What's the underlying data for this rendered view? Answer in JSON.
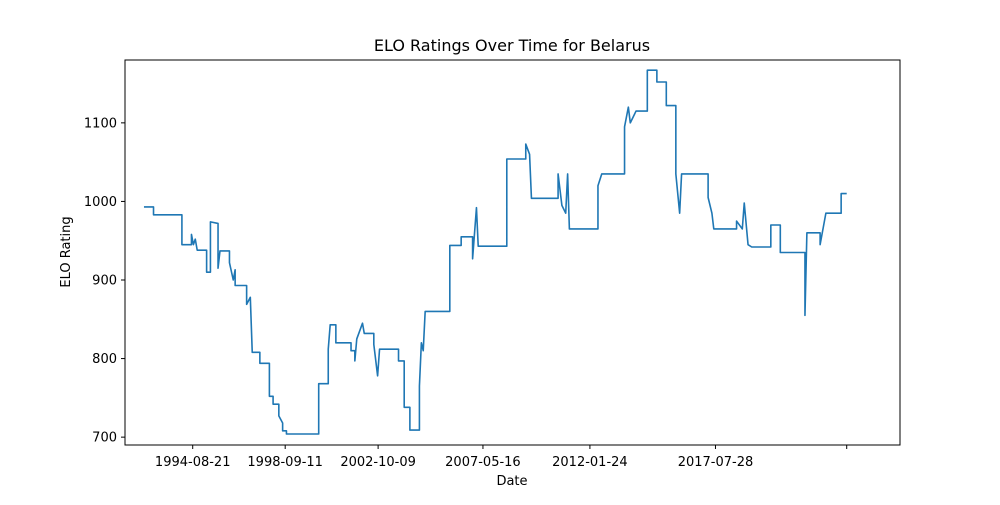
{
  "chart_data": {
    "type": "line",
    "title": "ELO Ratings Over Time for Belarus",
    "xlabel": "Date",
    "ylabel": "ELO Rating",
    "xlim": [
      "1991-09-01",
      "2025-09-01"
    ],
    "ylim": [
      690,
      1180
    ],
    "x_ticks": [
      "1994-08-21",
      "1998-09-11",
      "2002-10-09",
      "2007-05-16",
      "2012-01-24",
      "2017-07-28",
      "2023-05-01"
    ],
    "x_tick_labels": [
      "1994-08-21",
      "1998-09-11",
      "2002-10-09",
      "2007-05-16",
      "2012-01-24",
      "2017-07-28",
      ""
    ],
    "y_ticks": [
      700,
      800,
      900,
      1000,
      1100
    ],
    "grid": false,
    "series": [
      {
        "color": "#1f77b4",
        "points": [
          [
            "1992-07-01",
            993
          ],
          [
            "1992-12-01",
            993
          ],
          [
            "1992-12-01",
            983
          ],
          [
            "1994-03-01",
            983
          ],
          [
            "1994-03-01",
            945
          ],
          [
            "1994-08-01",
            945
          ],
          [
            "1994-08-01",
            958
          ],
          [
            "1994-09-01",
            945
          ],
          [
            "1994-10-01",
            952
          ],
          [
            "1994-11-01",
            938
          ],
          [
            "1995-04-01",
            938
          ],
          [
            "1995-04-01",
            910
          ],
          [
            "1995-06-01",
            910
          ],
          [
            "1995-06-01",
            974
          ],
          [
            "1995-10-01",
            972
          ],
          [
            "1995-10-01",
            915
          ],
          [
            "1995-11-01",
            937
          ],
          [
            "1996-04-01",
            937
          ],
          [
            "1996-04-01",
            922
          ],
          [
            "1996-06-01",
            900
          ],
          [
            "1996-07-01",
            913
          ],
          [
            "1996-07-01",
            893
          ],
          [
            "1997-01-01",
            893
          ],
          [
            "1997-01-01",
            869
          ],
          [
            "1997-03-01",
            878
          ],
          [
            "1997-04-01",
            808
          ],
          [
            "1997-08-01",
            808
          ],
          [
            "1997-08-01",
            794
          ],
          [
            "1998-01-01",
            794
          ],
          [
            "1998-01-01",
            752
          ],
          [
            "1998-03-01",
            752
          ],
          [
            "1998-03-01",
            742
          ],
          [
            "1998-06-01",
            742
          ],
          [
            "1998-06-01",
            727
          ],
          [
            "1998-08-01",
            718
          ],
          [
            "1998-08-01",
            708
          ],
          [
            "1998-10-01",
            708
          ],
          [
            "1998-10-01",
            704
          ],
          [
            "2000-03-01",
            704
          ],
          [
            "2000-03-01",
            768
          ],
          [
            "2000-08-01",
            768
          ],
          [
            "2000-08-01",
            812
          ],
          [
            "2000-09-01",
            843
          ],
          [
            "2000-12-01",
            843
          ],
          [
            "2000-12-01",
            820
          ],
          [
            "2001-08-01",
            820
          ],
          [
            "2001-08-01",
            810
          ],
          [
            "2001-10-01",
            810
          ],
          [
            "2001-10-01",
            797
          ],
          [
            "2001-11-01",
            825
          ],
          [
            "2002-02-01",
            845
          ],
          [
            "2002-03-01",
            832
          ],
          [
            "2002-08-01",
            832
          ],
          [
            "2002-08-01",
            818
          ],
          [
            "2002-10-01",
            778
          ],
          [
            "2002-11-01",
            812
          ],
          [
            "2003-09-01",
            812
          ],
          [
            "2003-09-01",
            797
          ],
          [
            "2003-12-01",
            797
          ],
          [
            "2003-12-01",
            738
          ],
          [
            "2004-03-01",
            738
          ],
          [
            "2004-03-01",
            709
          ],
          [
            "2004-08-01",
            709
          ],
          [
            "2004-08-01",
            765
          ],
          [
            "2004-09-01",
            820
          ],
          [
            "2004-10-01",
            810
          ],
          [
            "2004-11-01",
            860
          ],
          [
            "2005-12-01",
            860
          ],
          [
            "2005-12-01",
            944
          ],
          [
            "2006-06-01",
            944
          ],
          [
            "2006-06-01",
            955
          ],
          [
            "2006-12-01",
            955
          ],
          [
            "2006-12-01",
            927
          ],
          [
            "2007-02-01",
            992
          ],
          [
            "2007-03-01",
            943
          ],
          [
            "2008-06-01",
            943
          ],
          [
            "2008-06-01",
            1054
          ],
          [
            "2009-04-01",
            1054
          ],
          [
            "2009-04-01",
            1073
          ],
          [
            "2009-06-01",
            1060
          ],
          [
            "2009-07-01",
            1004
          ],
          [
            "2010-09-01",
            1004
          ],
          [
            "2010-09-01",
            1035
          ],
          [
            "2010-11-01",
            995
          ],
          [
            "2011-01-01",
            985
          ],
          [
            "2011-02-01",
            1035
          ],
          [
            "2011-03-01",
            965
          ],
          [
            "2012-06-01",
            965
          ],
          [
            "2012-06-01",
            1020
          ],
          [
            "2012-08-01",
            1035
          ],
          [
            "2013-08-01",
            1035
          ],
          [
            "2013-08-01",
            1095
          ],
          [
            "2013-10-01",
            1120
          ],
          [
            "2013-11-01",
            1100
          ],
          [
            "2014-02-01",
            1115
          ],
          [
            "2014-08-01",
            1115
          ],
          [
            "2014-08-01",
            1167
          ],
          [
            "2015-01-01",
            1167
          ],
          [
            "2015-01-01",
            1152
          ],
          [
            "2015-06-01",
            1152
          ],
          [
            "2015-06-01",
            1122
          ],
          [
            "2015-11-01",
            1122
          ],
          [
            "2015-11-01",
            1035
          ],
          [
            "2016-01-01",
            985
          ],
          [
            "2016-02-01",
            1035
          ],
          [
            "2017-04-01",
            1035
          ],
          [
            "2017-04-01",
            1005
          ],
          [
            "2017-06-01",
            985
          ],
          [
            "2017-07-01",
            965
          ],
          [
            "2018-07-01",
            965
          ],
          [
            "2018-07-01",
            975
          ],
          [
            "2018-10-01",
            965
          ],
          [
            "2018-11-01",
            998
          ],
          [
            "2019-01-01",
            945
          ],
          [
            "2019-03-01",
            942
          ],
          [
            "2020-01-01",
            942
          ],
          [
            "2020-01-01",
            970
          ],
          [
            "2020-06-01",
            970
          ],
          [
            "2020-06-01",
            935
          ],
          [
            "2021-07-01",
            935
          ],
          [
            "2021-07-01",
            855
          ],
          [
            "2021-08-01",
            960
          ],
          [
            "2022-03-01",
            960
          ],
          [
            "2022-03-01",
            945
          ],
          [
            "2022-06-01",
            985
          ],
          [
            "2023-02-01",
            985
          ],
          [
            "2023-02-01",
            1010
          ],
          [
            "2023-05-01",
            1010
          ]
        ]
      }
    ]
  }
}
